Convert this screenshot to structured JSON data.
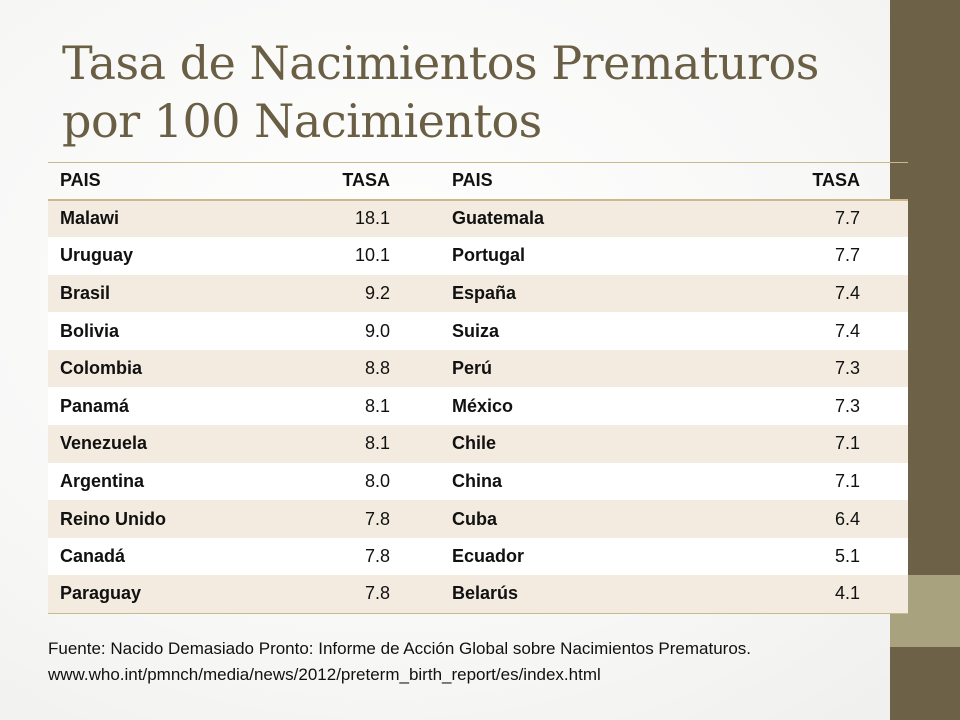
{
  "title": {
    "line1": "Tasa de Nacimientos Prematuros",
    "line2": "por 100 Nacimientos"
  },
  "table": {
    "headers": [
      "PAIS",
      "TASA",
      "PAIS",
      "TASA"
    ],
    "rows": [
      [
        "Malawi",
        "18.1",
        "Guatemala",
        "7.7"
      ],
      [
        "Uruguay",
        "10.1",
        "Portugal",
        "7.7"
      ],
      [
        "Brasil",
        "9.2",
        "España",
        "7.4"
      ],
      [
        "Bolivia",
        "9.0",
        "Suiza",
        "7.4"
      ],
      [
        "Colombia",
        "8.8",
        "Perú",
        "7.3"
      ],
      [
        "Panamá",
        "8.1",
        "México",
        "7.3"
      ],
      [
        "Venezuela",
        "8.1",
        "Chile",
        "7.1"
      ],
      [
        "Argentina",
        "8.0",
        "China",
        "7.1"
      ],
      [
        "Reino Unido",
        "7.8",
        "Cuba",
        "6.4"
      ],
      [
        "Canadá",
        "7.8",
        "Ecuador",
        "5.1"
      ],
      [
        "Paraguay",
        "7.8",
        "Belarús",
        "4.1"
      ]
    ]
  },
  "source": {
    "line1": "Fuente: Nacido Demasiado Pronto: Informe de Acción Global sobre Nacimientos Prematuros.",
    "line2": "www.who.int/pmnch/media/news/2012/preterm_birth_report/es/index.html"
  },
  "colors": {
    "title": "#6a5f45",
    "band": "#6d6248",
    "accent": "#a9a27e",
    "row_alt": "#f3ebdf"
  }
}
